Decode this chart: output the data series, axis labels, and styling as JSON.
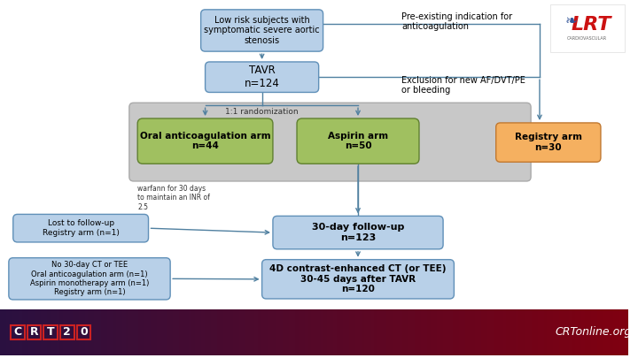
{
  "box_blue_fill": "#b8d0e8",
  "box_blue_edge": "#6090b8",
  "box_green_fill": "#a0c060",
  "box_green_edge": "#608030",
  "box_orange_fill": "#f5b060",
  "box_orange_edge": "#c07830",
  "panel_fill": "#c8c8c8",
  "panel_edge": "#aaaaaa",
  "title_top": "Low risk subjects with\nsymptomatic severe aortic\nstenosis",
  "title_tavr": "TAVR\nn=124",
  "label_randomization": "1:1 randomization",
  "label_oral": "Oral anticoagulation arm\nn=44",
  "label_aspirin": "Aspirin arm\nn=50",
  "label_registry": "Registry arm\nn=30",
  "label_warfarin": "warfann for 30 days\nto maintain an INR of\n2.5",
  "label_preexisting": "Pre-existing indication for\nanticoagulation",
  "label_exclusion": "Exclusion for new AF/DVT/PE\nor bleeding",
  "label_lost": "Lost to follow-up\nRegistry arm (n=1)",
  "label_30day": "30-day follow-up\nn=123",
  "label_no30day": "No 30-day CT or TEE\nOral anticoagulation arm (n=1)\nAspirin monotherapy arm (n=1)\nRegistry arm (n=1)",
  "label_4d": "4D contrast-enhanced CT (or TEE)\n30-45 days after TAVR\nn=120",
  "arrow_color": "#5080a0"
}
